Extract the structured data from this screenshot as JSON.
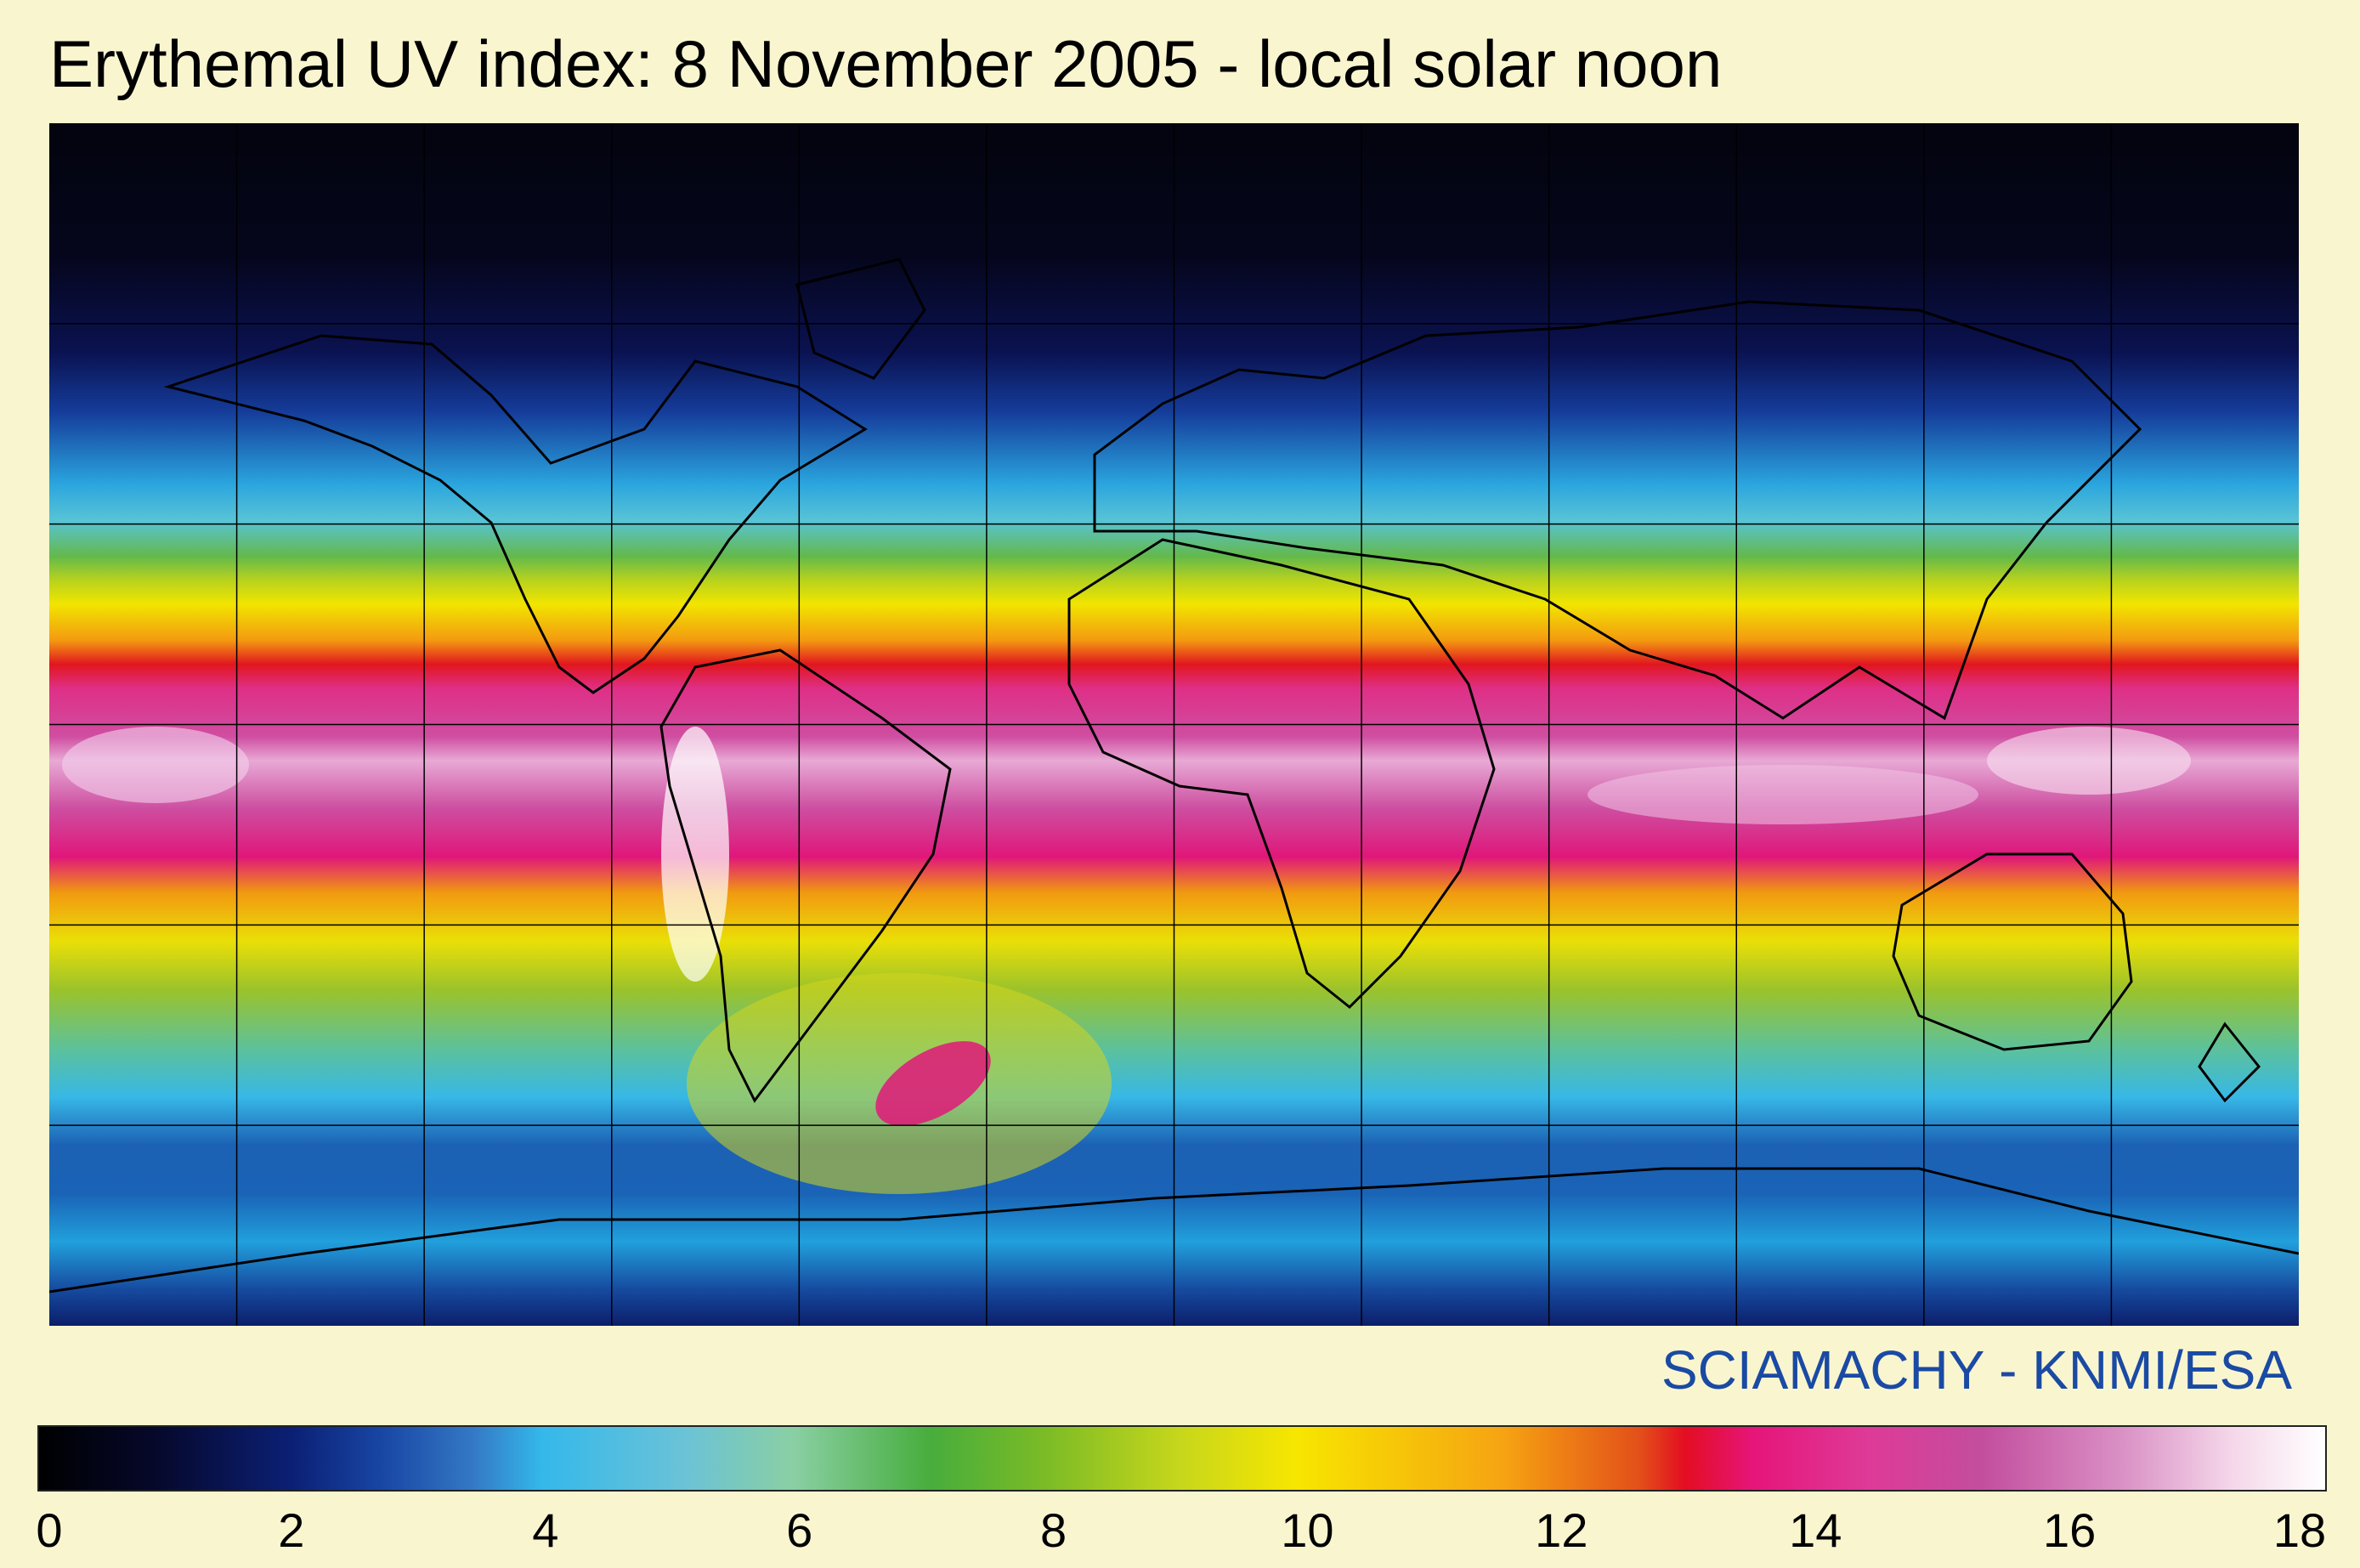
{
  "title": "Erythemal UV index: 8 November 2005 - local solar noon",
  "credit": "SCIAMACHY - KNMI/ESA",
  "colorbar": {
    "min": 0,
    "max": 18,
    "ticks": [
      "0",
      "2",
      "4",
      "6",
      "8",
      "10",
      "12",
      "14",
      "16",
      "18"
    ]
  },
  "map": {
    "projection": "equirectangular",
    "lon_range": [
      -180,
      180
    ],
    "lat_range": [
      -90,
      90
    ],
    "grid_lon_step": 30,
    "grid_lat_step": 30,
    "coastline_color": "#000000"
  }
}
